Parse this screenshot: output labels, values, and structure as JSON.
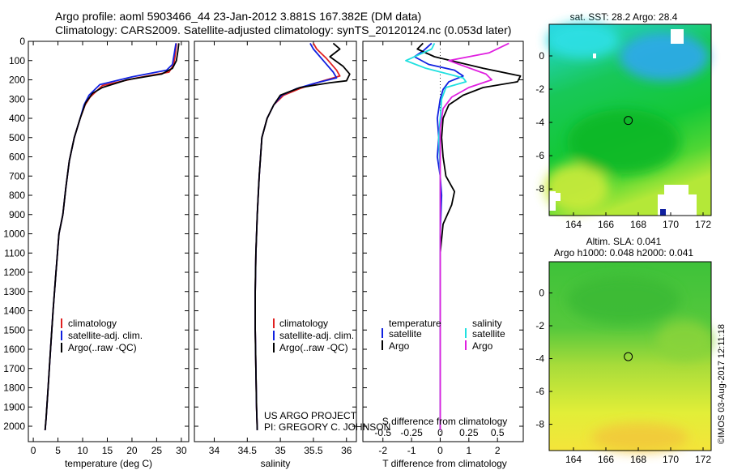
{
  "header": {
    "line1": "Argo profile: aoml 5903466_44 23-Jan-2012 3.881S 167.382E (DM data)",
    "line2": "Climatology: CARS2009. Satellite-adjusted climatology: synTS_20120124.nc (0.053d later)"
  },
  "footer": {
    "project": "US ARGO PROJECT",
    "pi": "PI: GREGORY C. JOHNSON",
    "credit": "©IMOS 03-Aug-2017 12:11:18"
  },
  "colors": {
    "climatology": "#e02020",
    "satellite": "#1020e0",
    "argo": "#000000",
    "salinity_satellite": "#20e0e0",
    "salinity_argo": "#e020e0"
  },
  "chart_data": [
    {
      "type": "line",
      "id": "temperature",
      "xlabel": "temperature (deg C)",
      "ylabel": "",
      "xlim": [
        -1,
        31.5
      ],
      "ylim": [
        2080,
        0
      ],
      "xticks": [
        0,
        5,
        10,
        15,
        20,
        25,
        30
      ],
      "yticks": [
        0,
        100,
        200,
        300,
        400,
        500,
        600,
        700,
        800,
        900,
        1000,
        1100,
        1200,
        1300,
        1400,
        1500,
        1600,
        1700,
        1800,
        1900,
        2000
      ],
      "legend": [
        "climatology",
        "satellite-adj. clim.",
        "Argo(..raw -QC)"
      ],
      "series": [
        {
          "name": "climatology",
          "color": "#e02020",
          "points": [
            [
              29,
              10
            ],
            [
              28.8,
              60
            ],
            [
              28.5,
              120
            ],
            [
              27.5,
              160
            ],
            [
              21,
              190
            ],
            [
              14,
              230
            ],
            [
              11.5,
              290
            ],
            [
              10.5,
              330
            ],
            [
              9.5,
              400
            ],
            [
              8.3,
              500
            ],
            [
              7.3,
              620
            ],
            [
              6.6,
              760
            ],
            [
              6,
              900
            ],
            [
              5.2,
              1000
            ],
            [
              4.6,
              1200
            ],
            [
              4,
              1400
            ],
            [
              3.5,
              1600
            ],
            [
              3,
              1800
            ],
            [
              2.6,
              1960
            ],
            [
              2.4,
              2020
            ]
          ]
        },
        {
          "name": "satellite-adj. clim.",
          "color": "#1020e0",
          "points": [
            [
              28.9,
              10
            ],
            [
              28.6,
              60
            ],
            [
              28.2,
              120
            ],
            [
              27,
              150
            ],
            [
              20,
              185
            ],
            [
              13.5,
              225
            ],
            [
              11.3,
              280
            ],
            [
              10.3,
              330
            ],
            [
              9.5,
              400
            ],
            [
              8.3,
              500
            ],
            [
              7.3,
              620
            ],
            [
              6.6,
              760
            ],
            [
              6,
              900
            ],
            [
              5.2,
              1000
            ],
            [
              4.6,
              1200
            ],
            [
              4,
              1400
            ],
            [
              3.5,
              1600
            ],
            [
              3,
              1800
            ],
            [
              2.6,
              1960
            ],
            [
              2.4,
              2020
            ]
          ]
        },
        {
          "name": "Argo(..raw -QC)",
          "color": "#000000",
          "points": [
            [
              29.5,
              10
            ],
            [
              29.3,
              50
            ],
            [
              29,
              100
            ],
            [
              28.2,
              140
            ],
            [
              26,
              170
            ],
            [
              19,
              200
            ],
            [
              14,
              240
            ],
            [
              12,
              270
            ],
            [
              10.6,
              320
            ],
            [
              9.5,
              400
            ],
            [
              8.3,
              500
            ],
            [
              7.3,
              620
            ],
            [
              6.6,
              760
            ],
            [
              6,
              900
            ],
            [
              5.2,
              1000
            ],
            [
              4.6,
              1200
            ],
            [
              4,
              1400
            ],
            [
              3.5,
              1600
            ],
            [
              3,
              1800
            ],
            [
              2.6,
              1960
            ],
            [
              2.4,
              2020
            ]
          ]
        }
      ]
    },
    {
      "type": "line",
      "id": "salinity",
      "xlabel": "salinity",
      "ylabel": "",
      "xlim": [
        33.7,
        36.15
      ],
      "ylim": [
        2080,
        0
      ],
      "xticks": [
        34,
        34.5,
        35,
        35.5,
        36
      ],
      "legend": [
        "climatology",
        "satellite-adj. clim.",
        "Argo(..raw -QC)"
      ],
      "series": [
        {
          "name": "climatology",
          "color": "#e02020",
          "points": [
            [
              35.5,
              10
            ],
            [
              35.55,
              40
            ],
            [
              35.7,
              90
            ],
            [
              35.85,
              150
            ],
            [
              35.9,
              180
            ],
            [
              35.6,
              210
            ],
            [
              35.3,
              245
            ],
            [
              35.05,
              280
            ],
            [
              34.9,
              330
            ],
            [
              34.8,
              400
            ],
            [
              34.72,
              500
            ],
            [
              34.68,
              700
            ],
            [
              34.65,
              900
            ],
            [
              34.63,
              1100
            ],
            [
              34.62,
              1300
            ],
            [
              34.62,
              1500
            ],
            [
              34.63,
              1700
            ],
            [
              34.64,
              1900
            ],
            [
              34.65,
              2020
            ]
          ]
        },
        {
          "name": "satellite-adj. clim.",
          "color": "#1020e0",
          "points": [
            [
              35.45,
              10
            ],
            [
              35.5,
              40
            ],
            [
              35.65,
              100
            ],
            [
              35.8,
              160
            ],
            [
              35.85,
              190
            ],
            [
              35.55,
              215
            ],
            [
              35.25,
              245
            ],
            [
              35.02,
              280
            ],
            [
              34.9,
              330
            ],
            [
              34.8,
              400
            ],
            [
              34.72,
              500
            ],
            [
              34.68,
              700
            ],
            [
              34.65,
              900
            ],
            [
              34.63,
              1100
            ],
            [
              34.62,
              1300
            ],
            [
              34.62,
              1500
            ],
            [
              34.63,
              1700
            ],
            [
              34.64,
              1900
            ],
            [
              34.65,
              2020
            ]
          ]
        },
        {
          "name": "Argo(..raw -QC)",
          "color": "#000000",
          "points": [
            [
              35.8,
              10
            ],
            [
              35.9,
              40
            ],
            [
              35.75,
              80
            ],
            [
              35.95,
              130
            ],
            [
              36.05,
              170
            ],
            [
              36,
              205
            ],
            [
              35.75,
              215
            ],
            [
              35.3,
              240
            ],
            [
              35.0,
              280
            ],
            [
              34.9,
              330
            ],
            [
              34.8,
              400
            ],
            [
              34.72,
              500
            ],
            [
              34.68,
              700
            ],
            [
              34.65,
              900
            ],
            [
              34.63,
              1100
            ],
            [
              34.62,
              1300
            ],
            [
              34.62,
              1500
            ],
            [
              34.63,
              1700
            ],
            [
              34.64,
              1900
            ],
            [
              34.65,
              2020
            ]
          ]
        }
      ]
    },
    {
      "type": "line",
      "id": "difference",
      "xlabel": "T difference from climatology",
      "xlabel_top": "S difference from climatology",
      "xlim": [
        -2.7,
        2.9
      ],
      "ylim": [
        2080,
        0
      ],
      "xticks": [
        -2,
        -1,
        0,
        1,
        2
      ],
      "xticks_s": [
        "-0.5",
        "-0.25",
        "0",
        "0.25",
        "0.5"
      ],
      "legend_temperature": {
        "title": "temperature",
        "items": [
          "satellite",
          "Argo"
        ]
      },
      "legend_salinity": {
        "title": "salinity",
        "items": [
          "satellite",
          "Argo"
        ]
      },
      "series": [
        {
          "name": "T satellite",
          "color": "#1020e0",
          "points": [
            [
              -0.3,
              10
            ],
            [
              -0.6,
              50
            ],
            [
              -0.9,
              80
            ],
            [
              -0.4,
              120
            ],
            [
              0.5,
              150
            ],
            [
              0.8,
              180
            ],
            [
              0.3,
              210
            ],
            [
              0.1,
              250
            ],
            [
              0,
              300
            ],
            [
              -0.1,
              400
            ],
            [
              -0.05,
              500
            ],
            [
              -0.1,
              600
            ],
            [
              0,
              700
            ],
            [
              0.05,
              800
            ],
            [
              0,
              1000
            ],
            [
              0,
              1200
            ],
            [
              0,
              1400
            ],
            [
              0,
              1600
            ],
            [
              0,
              1800
            ],
            [
              0,
              2020
            ]
          ]
        },
        {
          "name": "T Argo",
          "color": "#000000",
          "points": [
            [
              -0.6,
              10
            ],
            [
              -0.8,
              40
            ],
            [
              -0.2,
              80
            ],
            [
              1.5,
              140
            ],
            [
              2.8,
              180
            ],
            [
              2.7,
              210
            ],
            [
              1.5,
              240
            ],
            [
              0.8,
              280
            ],
            [
              0.3,
              330
            ],
            [
              0.1,
              400
            ],
            [
              0.05,
              500
            ],
            [
              0.1,
              600
            ],
            [
              0.2,
              700
            ],
            [
              0.5,
              780
            ],
            [
              0.4,
              850
            ],
            [
              0.1,
              950
            ],
            [
              0,
              1100
            ],
            [
              0,
              1300
            ],
            [
              0,
              1500
            ],
            [
              0,
              1700
            ],
            [
              0,
              1900
            ],
            [
              0,
              2020
            ]
          ]
        },
        {
          "name": "S satellite",
          "color": "#20e0e0",
          "points": [
            [
              -0.2,
              10
            ],
            [
              -0.3,
              40
            ],
            [
              -1.2,
              100
            ],
            [
              -0.5,
              140
            ],
            [
              0.8,
              190
            ],
            [
              0.9,
              210
            ],
            [
              0.2,
              240
            ],
            [
              0.05,
              300
            ],
            [
              0,
              400
            ],
            [
              -0.05,
              500
            ],
            [
              0,
              700
            ],
            [
              0,
              900
            ],
            [
              0,
              1100
            ],
            [
              0,
              1300
            ],
            [
              0,
              1500
            ],
            [
              0,
              1700
            ],
            [
              0,
              1900
            ],
            [
              0,
              2020
            ]
          ]
        },
        {
          "name": "S Argo",
          "color": "#e020e0",
          "points": [
            [
              2.4,
              10
            ],
            [
              1.7,
              60
            ],
            [
              0.3,
              100
            ],
            [
              1.6,
              170
            ],
            [
              1.8,
              200
            ],
            [
              1,
              240
            ],
            [
              0.4,
              290
            ],
            [
              0.1,
              350
            ],
            [
              0,
              450
            ],
            [
              0,
              600
            ],
            [
              0,
              800
            ],
            [
              0,
              1000
            ],
            [
              0,
              1200
            ],
            [
              0,
              1400
            ],
            [
              0,
              1600
            ],
            [
              0,
              1800
            ],
            [
              0,
              2020
            ]
          ]
        }
      ]
    },
    {
      "type": "heatmap",
      "id": "sst-map",
      "title": "sat. SST: 28.2 Argo: 28.4",
      "xlim": [
        162.5,
        172.5
      ],
      "ylim": [
        -9.6,
        1.9
      ],
      "xticks": [
        164,
        166,
        168,
        170,
        172
      ],
      "yticks": [
        0,
        -2,
        -4,
        -6,
        -8
      ],
      "marker": [
        167.382,
        -3.881
      ]
    },
    {
      "type": "heatmap",
      "id": "sla-map",
      "title": "Altim. SLA: 0.041",
      "title2": "Argo h1000: 0.048 h2000: 0.041",
      "xlim": [
        162.5,
        172.5
      ],
      "ylim": [
        -9.6,
        1.9
      ],
      "xticks": [
        164,
        166,
        168,
        170,
        172
      ],
      "yticks": [
        0,
        -2,
        -4,
        -6,
        -8
      ],
      "marker": [
        167.382,
        -3.881
      ]
    }
  ]
}
